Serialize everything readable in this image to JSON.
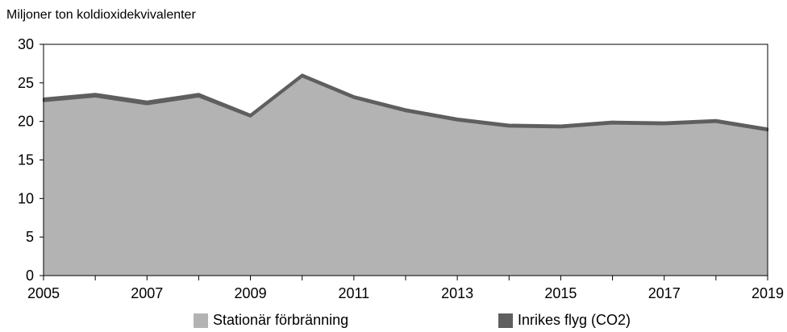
{
  "chart_data": {
    "type": "area",
    "stacked": true,
    "title": "",
    "xlabel": "",
    "ylabel": "Miljoner ton koldioxidekvivalenter",
    "x": [
      2005,
      2006,
      2007,
      2008,
      2009,
      2010,
      2011,
      2012,
      2013,
      2014,
      2015,
      2016,
      2017,
      2018,
      2019
    ],
    "xticks": [
      "2005",
      "2007",
      "2009",
      "2011",
      "2013",
      "2015",
      "2017",
      "2019"
    ],
    "ylim": [
      0,
      30
    ],
    "yticks": [
      "0",
      "5",
      "10",
      "15",
      "20",
      "25",
      "30"
    ],
    "grid": false,
    "legend_position": "bottom",
    "series": [
      {
        "name": "Stationär förbränning",
        "color": "#b3b3b3",
        "values": [
          22.6,
          23.2,
          22.2,
          23.2,
          20.6,
          25.8,
          23.0,
          21.3,
          20.1,
          19.3,
          19.2,
          19.7,
          19.6,
          19.9,
          18.8
        ]
      },
      {
        "name": "Inrikes flyg (CO2)",
        "color": "#5f5f5f",
        "values": [
          0.4,
          0.4,
          0.4,
          0.4,
          0.3,
          0.3,
          0.3,
          0.3,
          0.3,
          0.3,
          0.3,
          0.3,
          0.3,
          0.3,
          0.3
        ]
      }
    ]
  }
}
